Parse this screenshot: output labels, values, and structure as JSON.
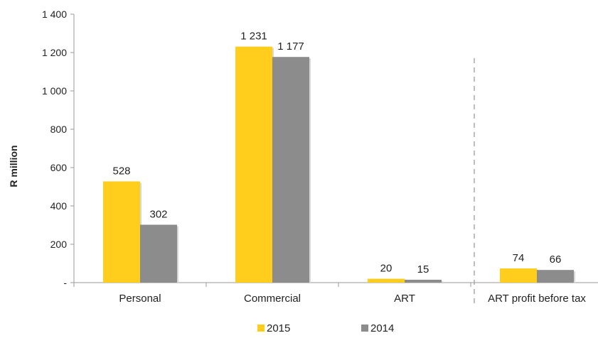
{
  "chart_data": {
    "type": "bar",
    "categories": [
      "Personal",
      "Commercial",
      "ART",
      "ART profit before tax"
    ],
    "series": [
      {
        "name": "2015",
        "values": [
          528,
          1231,
          20,
          74
        ],
        "labels": [
          "528",
          "1 231",
          "20",
          "74"
        ],
        "color": "#FFCD1C"
      },
      {
        "name": "2014",
        "values": [
          302,
          1177,
          15,
          66
        ],
        "labels": [
          "302",
          "1 177",
          "15",
          "66"
        ],
        "color": "#8C8C8C"
      }
    ],
    "ylabel": "R million",
    "ylim": [
      0,
      1400
    ],
    "yticks": [
      0,
      200,
      400,
      600,
      800,
      1000,
      1200,
      1400
    ],
    "ytick_labels": [
      "-",
      "200",
      "400",
      "600",
      "800",
      "1 000",
      "1 200",
      "1 400"
    ],
    "divider": "dashed line between ART and ART profit before tax",
    "grid": false,
    "legend": "bottom-center"
  }
}
